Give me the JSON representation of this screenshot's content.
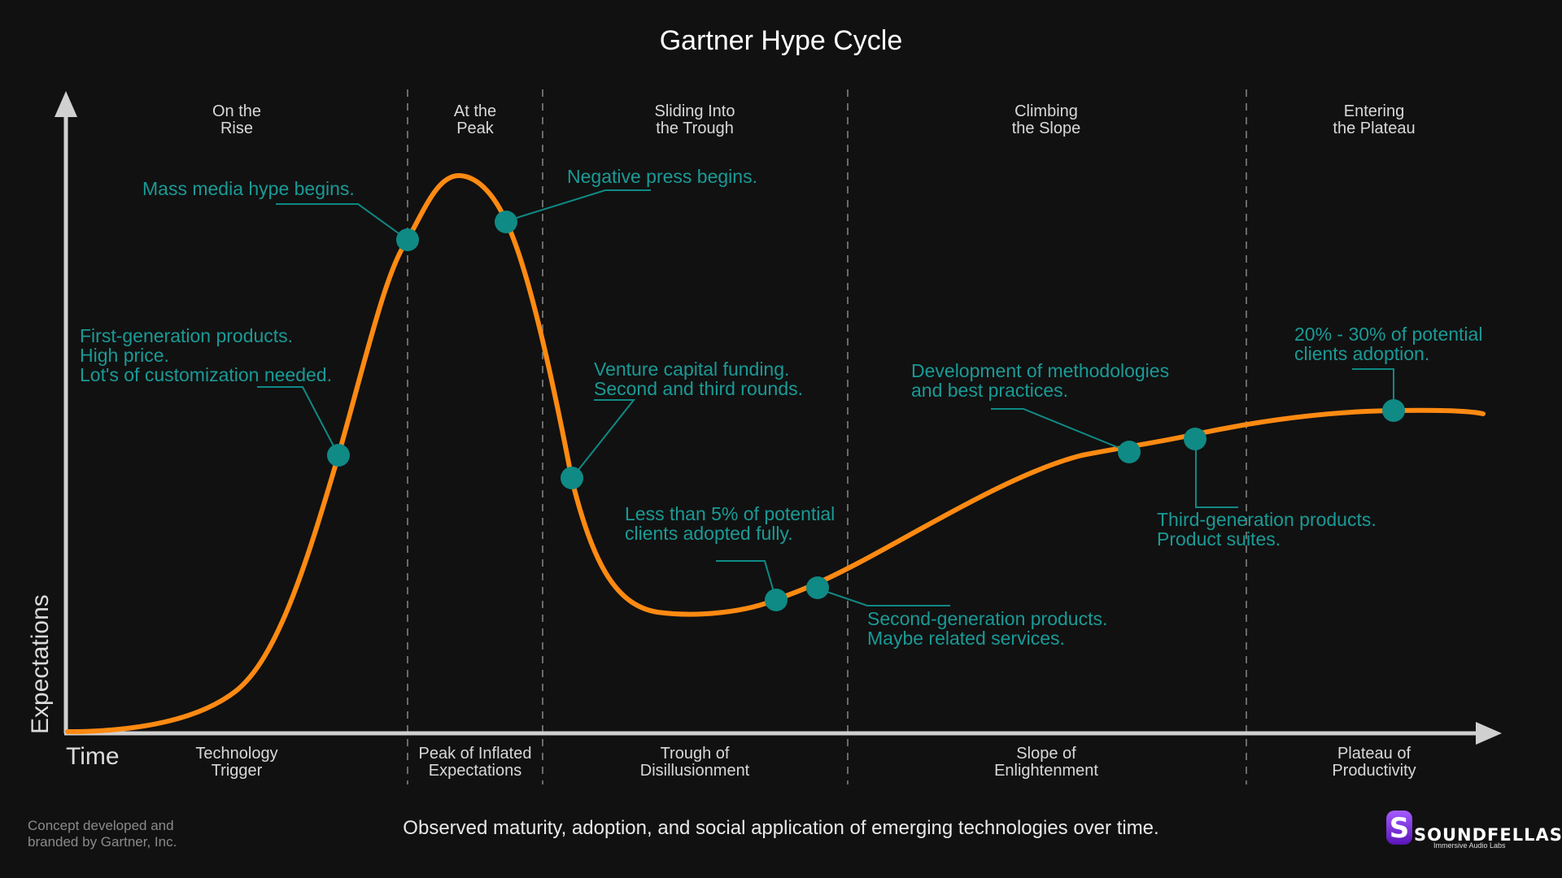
{
  "title": "Gartner Hype Cycle",
  "y_axis_label": "Expectations",
  "x_axis_label": "Time",
  "caption": "Observed maturity, adoption, and social application of emerging technologies over time.",
  "credit": [
    "Concept developed and",
    "branded by Gartner, Inc."
  ],
  "logo": {
    "name": "SOUNDFELLAS",
    "tagline": "Immersive Audio Labs",
    "brand_color": "#7b2fd8"
  },
  "colors": {
    "curve": "#ff8a12",
    "marker": "#0f8a85",
    "annotation": "#1a9a96",
    "axis": "#d0d0d0",
    "divider": "#6a6a6a"
  },
  "phases": [
    {
      "top": [
        "On the",
        "Rise"
      ],
      "bottom": [
        "Technology",
        "Trigger"
      ]
    },
    {
      "top": [
        "At the",
        "Peak"
      ],
      "bottom": [
        "Peak of Inflated",
        "Expectations"
      ]
    },
    {
      "top": [
        "Sliding Into",
        "the Trough"
      ],
      "bottom": [
        "Trough of",
        "Disillusionment"
      ]
    },
    {
      "top": [
        "Climbing",
        "the Slope"
      ],
      "bottom": [
        "Slope of",
        "Enlightenment"
      ]
    },
    {
      "top": [
        "Entering",
        "the Plateau"
      ],
      "bottom": [
        "Plateau of",
        "Productivity"
      ]
    }
  ],
  "annotations": [
    {
      "lines": [
        "First-generation products.",
        "High price.",
        "Lot's of customization needed."
      ]
    },
    {
      "lines": [
        "Mass media hype begins."
      ]
    },
    {
      "lines": [
        "Negative press begins."
      ]
    },
    {
      "lines": [
        "Venture capital funding.",
        "Second and third rounds."
      ]
    },
    {
      "lines": [
        "Less than 5% of potential",
        "clients adopted fully."
      ]
    },
    {
      "lines": [
        "Second-generation products.",
        "Maybe related services."
      ]
    },
    {
      "lines": [
        "Development of methodologies",
        "and best practices."
      ]
    },
    {
      "lines": [
        "Third-generation products.",
        "Product suites."
      ]
    },
    {
      "lines": [
        "20% - 30% of potential",
        "clients adoption."
      ]
    }
  ]
}
